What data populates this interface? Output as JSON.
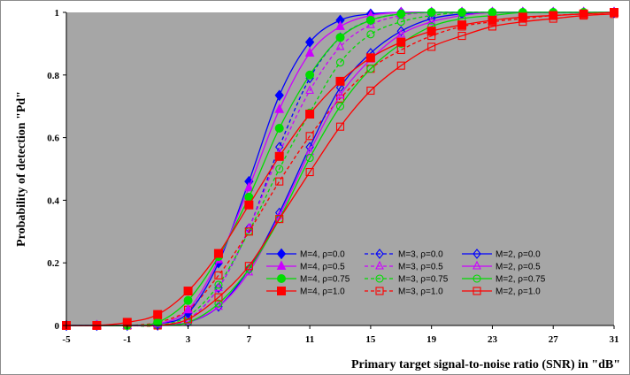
{
  "chart_data": {
    "type": "line",
    "xlabel": "Primary target signal-to-noise ratio (SNR) in \"dB\"",
    "ylabel": "Probability of detection \"Pd\"",
    "xlim": [
      -5,
      31
    ],
    "ylim": [
      0,
      1
    ],
    "x_ticks": [
      "-5",
      "-1",
      "3",
      "7",
      "11",
      "15",
      "19",
      "23",
      "27",
      "31"
    ],
    "y_ticks": [
      "0",
      "0.2",
      "0.4",
      "0.6",
      "0.8",
      "1"
    ],
    "plot_background": "#a6a6a6",
    "grid": false,
    "legend_position": "bottom-right",
    "x": [
      -5,
      -3,
      -1,
      1,
      3,
      5,
      7,
      9,
      11,
      13,
      15,
      17,
      19,
      21,
      23,
      25,
      27,
      29,
      31
    ],
    "series": [
      {
        "name": "M=4, ρ=0.0",
        "color": "#0000ff",
        "dash": "solid",
        "marker": "diamond",
        "filled": true,
        "values": [
          0,
          0,
          0,
          0.005,
          0.04,
          0.2,
          0.46,
          0.735,
          0.905,
          0.975,
          0.995,
          1,
          1,
          1,
          1,
          1,
          1,
          1,
          1
        ]
      },
      {
        "name": "M=4, ρ=0.5",
        "color": "#cc00ff",
        "dash": "solid",
        "marker": "triangle",
        "filled": true,
        "values": [
          0,
          0,
          0,
          0.005,
          0.05,
          0.21,
          0.44,
          0.69,
          0.87,
          0.955,
          0.99,
          1,
          1,
          1,
          1,
          1,
          1,
          1,
          1
        ]
      },
      {
        "name": "M=4, ρ=0.75",
        "color": "#00dd00",
        "dash": "solid",
        "marker": "circle",
        "filled": true,
        "values": [
          0,
          0,
          0,
          0.01,
          0.08,
          0.22,
          0.41,
          0.63,
          0.8,
          0.92,
          0.975,
          0.995,
          1,
          1,
          1,
          1,
          1,
          1,
          1
        ]
      },
      {
        "name": "M=4, ρ=1.0",
        "color": "#ff0000",
        "dash": "solid",
        "marker": "square",
        "filled": true,
        "values": [
          0,
          0,
          0.01,
          0.035,
          0.11,
          0.23,
          0.385,
          0.54,
          0.675,
          0.78,
          0.855,
          0.905,
          0.94,
          0.96,
          0.975,
          0.985,
          0.99,
          0.995,
          1
        ]
      },
      {
        "name": "M=3, ρ=0.0",
        "color": "#0000ff",
        "dash": "dashed",
        "marker": "diamond",
        "filled": false,
        "values": [
          0,
          0,
          0,
          0,
          0.02,
          0.12,
          0.31,
          0.57,
          0.79,
          0.92,
          0.975,
          0.995,
          1,
          1,
          1,
          1,
          1,
          1,
          1
        ]
      },
      {
        "name": "M=3, ρ=0.5",
        "color": "#cc00ff",
        "dash": "dashed",
        "marker": "triangle",
        "filled": false,
        "values": [
          0,
          0,
          0,
          0,
          0.02,
          0.12,
          0.31,
          0.55,
          0.75,
          0.89,
          0.96,
          0.99,
          1,
          1,
          1,
          1,
          1,
          1,
          1
        ]
      },
      {
        "name": "M=3, ρ=0.75",
        "color": "#00dd00",
        "dash": "dashed",
        "marker": "circle",
        "filled": false,
        "values": [
          0,
          0,
          0,
          0,
          0.03,
          0.13,
          0.3,
          0.5,
          0.68,
          0.84,
          0.93,
          0.97,
          0.99,
          1,
          1,
          1,
          1,
          1,
          1
        ]
      },
      {
        "name": "M=3, ρ=1.0",
        "color": "#ff0000",
        "dash": "dashed",
        "marker": "square",
        "filled": false,
        "values": [
          0,
          0,
          0,
          0.01,
          0.05,
          0.16,
          0.3,
          0.46,
          0.605,
          0.725,
          0.82,
          0.88,
          0.925,
          0.955,
          0.97,
          0.98,
          0.99,
          0.995,
          1
        ]
      },
      {
        "name": "M=2, ρ=0.0",
        "color": "#0000ff",
        "dash": "solid",
        "marker": "diamond",
        "filled": false,
        "values": [
          0,
          0,
          0,
          0,
          0.01,
          0.06,
          0.18,
          0.36,
          0.57,
          0.76,
          0.87,
          0.94,
          0.98,
          0.995,
          1,
          1,
          1,
          1,
          1
        ]
      },
      {
        "name": "M=2, ρ=0.5",
        "color": "#cc00ff",
        "dash": "solid",
        "marker": "triangle",
        "filled": false,
        "values": [
          0,
          0,
          0,
          0,
          0.01,
          0.06,
          0.17,
          0.35,
          0.555,
          0.735,
          0.85,
          0.93,
          0.97,
          0.99,
          1,
          1,
          1,
          1,
          1
        ]
      },
      {
        "name": "M=2, ρ=0.75",
        "color": "#00dd00",
        "dash": "solid",
        "marker": "circle",
        "filled": false,
        "values": [
          0,
          0,
          0,
          0,
          0.01,
          0.07,
          0.18,
          0.34,
          0.535,
          0.7,
          0.82,
          0.9,
          0.955,
          0.98,
          0.99,
          1,
          1,
          1,
          1
        ]
      },
      {
        "name": "M=2, ρ=1.0",
        "color": "#ff0000",
        "dash": "solid",
        "marker": "square",
        "filled": false,
        "values": [
          0,
          0,
          0,
          0,
          0.02,
          0.09,
          0.19,
          0.34,
          0.49,
          0.635,
          0.75,
          0.83,
          0.89,
          0.925,
          0.955,
          0.97,
          0.98,
          0.99,
          0.995
        ]
      }
    ]
  }
}
